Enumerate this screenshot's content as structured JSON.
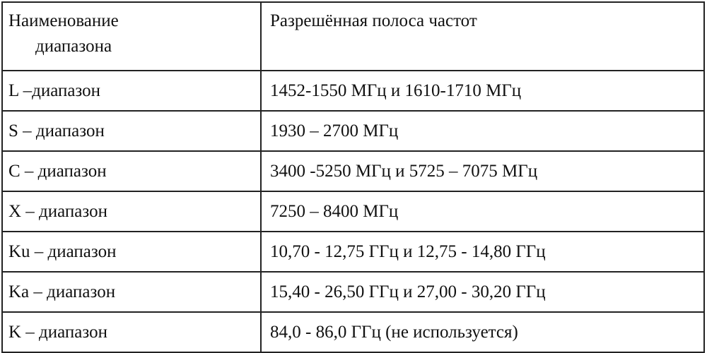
{
  "header": {
    "col1_line1": "Наименование",
    "col1_line2": "диапазона",
    "col2": "Разрешённая полоса частот"
  },
  "rows": [
    {
      "band": "L –диапазон",
      "freq": "1452-1550 МГц и 1610-1710 МГц"
    },
    {
      "band": "S – диапазон",
      "freq": "1930 – 2700 МГц"
    },
    {
      "band": "C – диапазон",
      "freq": "3400 -5250 МГц и 5725 – 7075 МГц"
    },
    {
      "band": "X – диапазон",
      "freq": "7250 – 8400 МГц"
    },
    {
      "band": "Ku – диапазон",
      "freq": "10,70 - 12,75 ГГц и 12,75 - 14,80 ГГц"
    },
    {
      "band": "Ka – диапазон",
      "freq": "15,40 - 26,50 ГГц и 27,00 - 30,20 ГГц"
    },
    {
      "band": "K – диапазон",
      "freq": "84,0 - 86,0 ГГц (не используется)"
    }
  ]
}
